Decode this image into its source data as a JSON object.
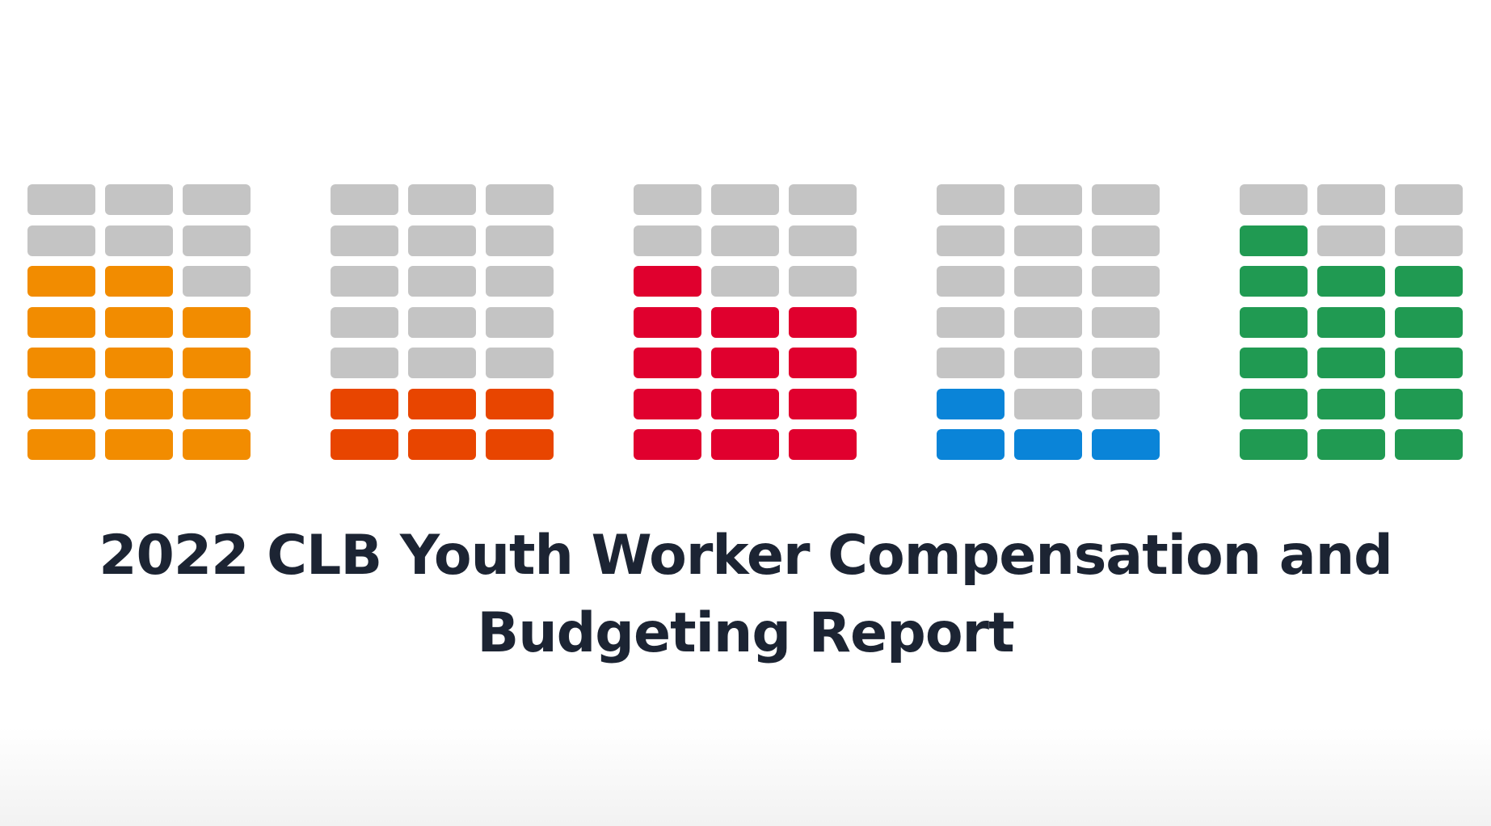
{
  "meters": [
    {
      "name": "orange",
      "color": "#f28c00",
      "empty_color": "#c4c4c4",
      "rows": 7,
      "cols": 3,
      "filled_cells": 14
    },
    {
      "name": "red-orange",
      "color": "#e84500",
      "empty_color": "#c4c4c4",
      "rows": 7,
      "cols": 3,
      "filled_cells": 6
    },
    {
      "name": "red",
      "color": "#e0002e",
      "empty_color": "#c4c4c4",
      "rows": 7,
      "cols": 3,
      "filled_cells": 13
    },
    {
      "name": "blue",
      "color": "#0a84d8",
      "empty_color": "#c4c4c4",
      "rows": 7,
      "cols": 3,
      "filled_cells": 4
    },
    {
      "name": "green",
      "color": "#209a52",
      "empty_color": "#c4c4c4",
      "rows": 7,
      "cols": 3,
      "filled_cells": 16
    }
  ],
  "title": {
    "line1": "2022 CLB Youth Worker Compensation and",
    "line2": "Budgeting Report"
  },
  "colors": {
    "title_text": "#1c2433",
    "background": "#ffffff"
  }
}
